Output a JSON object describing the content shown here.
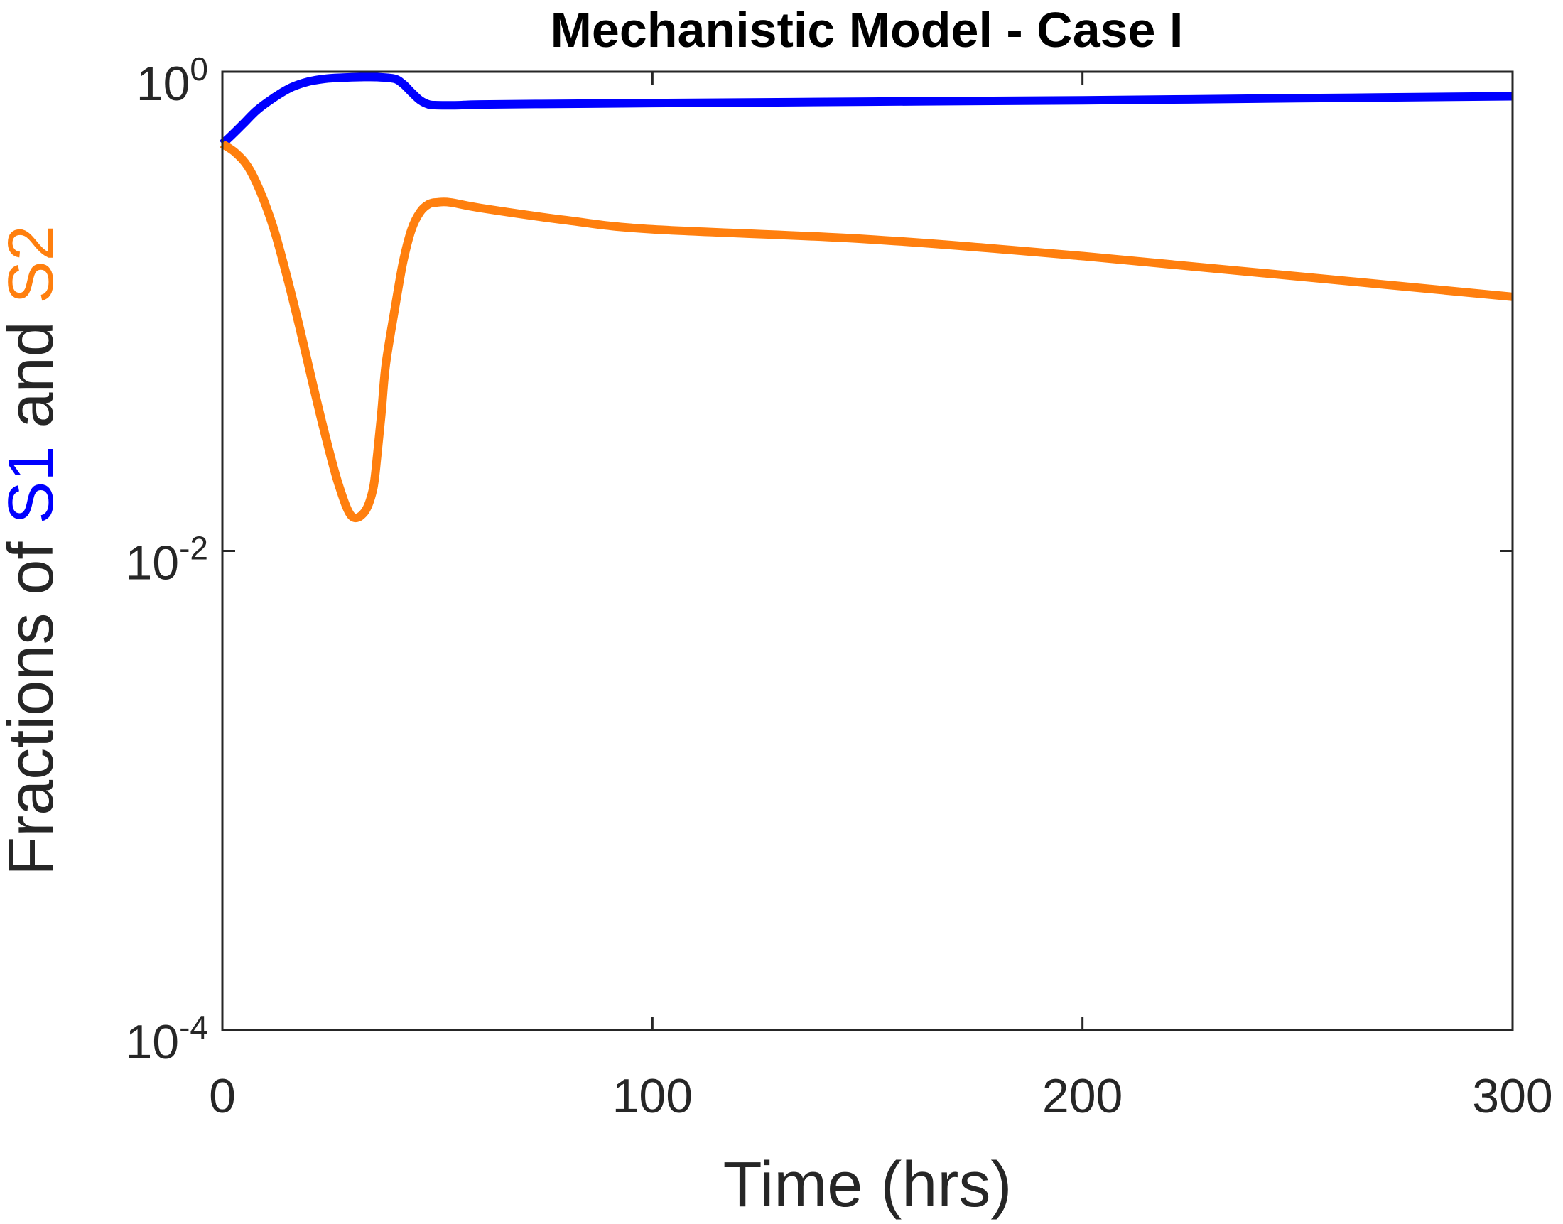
{
  "chart_data": {
    "type": "line",
    "title": "Mechanistic Model - Case I",
    "xlabel": "Time (hrs)",
    "ylabel": {
      "prefix": "Fractions of ",
      "s1": "S1",
      "middle": " and ",
      "s2": "S2",
      "s1_color": "#0000ff",
      "s2_color": "#ff7f0e"
    },
    "xlim": [
      0,
      300
    ],
    "ylim": [
      0.0001,
      1
    ],
    "yscale": "log",
    "grid": false,
    "legend": "none",
    "xticks": [
      {
        "value": 0,
        "label": "0"
      },
      {
        "value": 100,
        "label": "100"
      },
      {
        "value": 200,
        "label": "200"
      },
      {
        "value": 300,
        "label": "300"
      }
    ],
    "yticks": [
      {
        "value": 1,
        "base": "10",
        "exp": "0"
      },
      {
        "value": 0.01,
        "base": "10",
        "exp": "-2"
      },
      {
        "value": 0.0001,
        "base": "10",
        "exp": "-4"
      }
    ],
    "series": [
      {
        "color": "#0000ff",
        "x": [
          0,
          2,
          5,
          8,
          12,
          16,
          20,
          24,
          28,
          32,
          36,
          40,
          42,
          44,
          46,
          48,
          50,
          55,
          60,
          80,
          100,
          150,
          200,
          250,
          300
        ],
        "y": [
          0.5,
          0.54,
          0.61,
          0.69,
          0.78,
          0.86,
          0.91,
          0.935,
          0.945,
          0.95,
          0.95,
          0.935,
          0.89,
          0.82,
          0.76,
          0.73,
          0.725,
          0.725,
          0.73,
          0.735,
          0.74,
          0.75,
          0.76,
          0.775,
          0.79
        ]
      },
      {
        "color": "#ff7f0e",
        "x": [
          0,
          3,
          6,
          9,
          12,
          15,
          18,
          21,
          24,
          27,
          30,
          33,
          35,
          36,
          37,
          38,
          40,
          42,
          44,
          46,
          48,
          50,
          53,
          60,
          80,
          100,
          150,
          200,
          250,
          300
        ],
        "y": [
          0.5,
          0.46,
          0.4,
          0.31,
          0.22,
          0.14,
          0.085,
          0.05,
          0.03,
          0.019,
          0.014,
          0.0145,
          0.018,
          0.025,
          0.038,
          0.06,
          0.1,
          0.16,
          0.22,
          0.26,
          0.28,
          0.285,
          0.285,
          0.27,
          0.24,
          0.22,
          0.2,
          0.17,
          0.14,
          0.115
        ]
      }
    ]
  }
}
